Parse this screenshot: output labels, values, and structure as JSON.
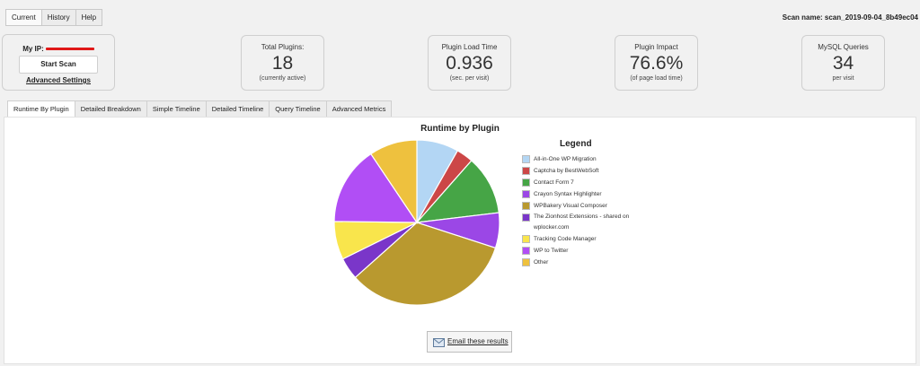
{
  "top_tabs": [
    {
      "label": "Current"
    },
    {
      "label": "History"
    },
    {
      "label": "Help"
    }
  ],
  "scan_name": "Scan name: scan_2019-09-04_8b49ec04",
  "ip_card": {
    "label": "My IP:",
    "start_label": "Start Scan",
    "advanced_label": "Advanced Settings"
  },
  "metrics": [
    {
      "label": "Total Plugins:",
      "value": "18",
      "sub": "(currently active)"
    },
    {
      "label": "Plugin Load Time",
      "value": "0.936",
      "sub": "(sec. per visit)"
    },
    {
      "label": "Plugin Impact",
      "value": "76.6%",
      "sub": "(of page load time)"
    },
    {
      "label": "MySQL Queries",
      "value": "34",
      "sub": "per visit"
    }
  ],
  "content_tabs": [
    {
      "label": "Runtime By Plugin"
    },
    {
      "label": "Detailed Breakdown"
    },
    {
      "label": "Simple Timeline"
    },
    {
      "label": "Detailed Timeline"
    },
    {
      "label": "Query Timeline"
    },
    {
      "label": "Advanced Metrics"
    }
  ],
  "chart_data": {
    "type": "pie",
    "title": "Runtime by Plugin",
    "legend_title": "Legend",
    "legend_position": "right",
    "slices": [
      {
        "label": "All-in-One WP Migration",
        "value": 8.2,
        "color": "#b3d6f4"
      },
      {
        "label": "Captcha by BestWebSoft",
        "value": 3.3,
        "color": "#cc4747"
      },
      {
        "label": "Contact Form 7",
        "value": 11.6,
        "color": "#46a546"
      },
      {
        "label": "Crayon Syntax Highlighter",
        "value": 6.9,
        "color": "#9b47e6"
      },
      {
        "label": "WPBakery Visual Composer",
        "value": 33.4,
        "color": "#b9992f"
      },
      {
        "label": "The Zionhost Extensions - shared on wplocker.com",
        "value": 4.3,
        "color": "#7a36c9"
      },
      {
        "label": "Tracking Code Manager",
        "value": 7.5,
        "color": "#f9e54c"
      },
      {
        "label": "WP to Twitter",
        "value": 15.4,
        "color": "#b14ef5"
      },
      {
        "label": "Other",
        "value": 9.4,
        "color": "#eec13e"
      }
    ]
  },
  "email_label": "Email these results"
}
